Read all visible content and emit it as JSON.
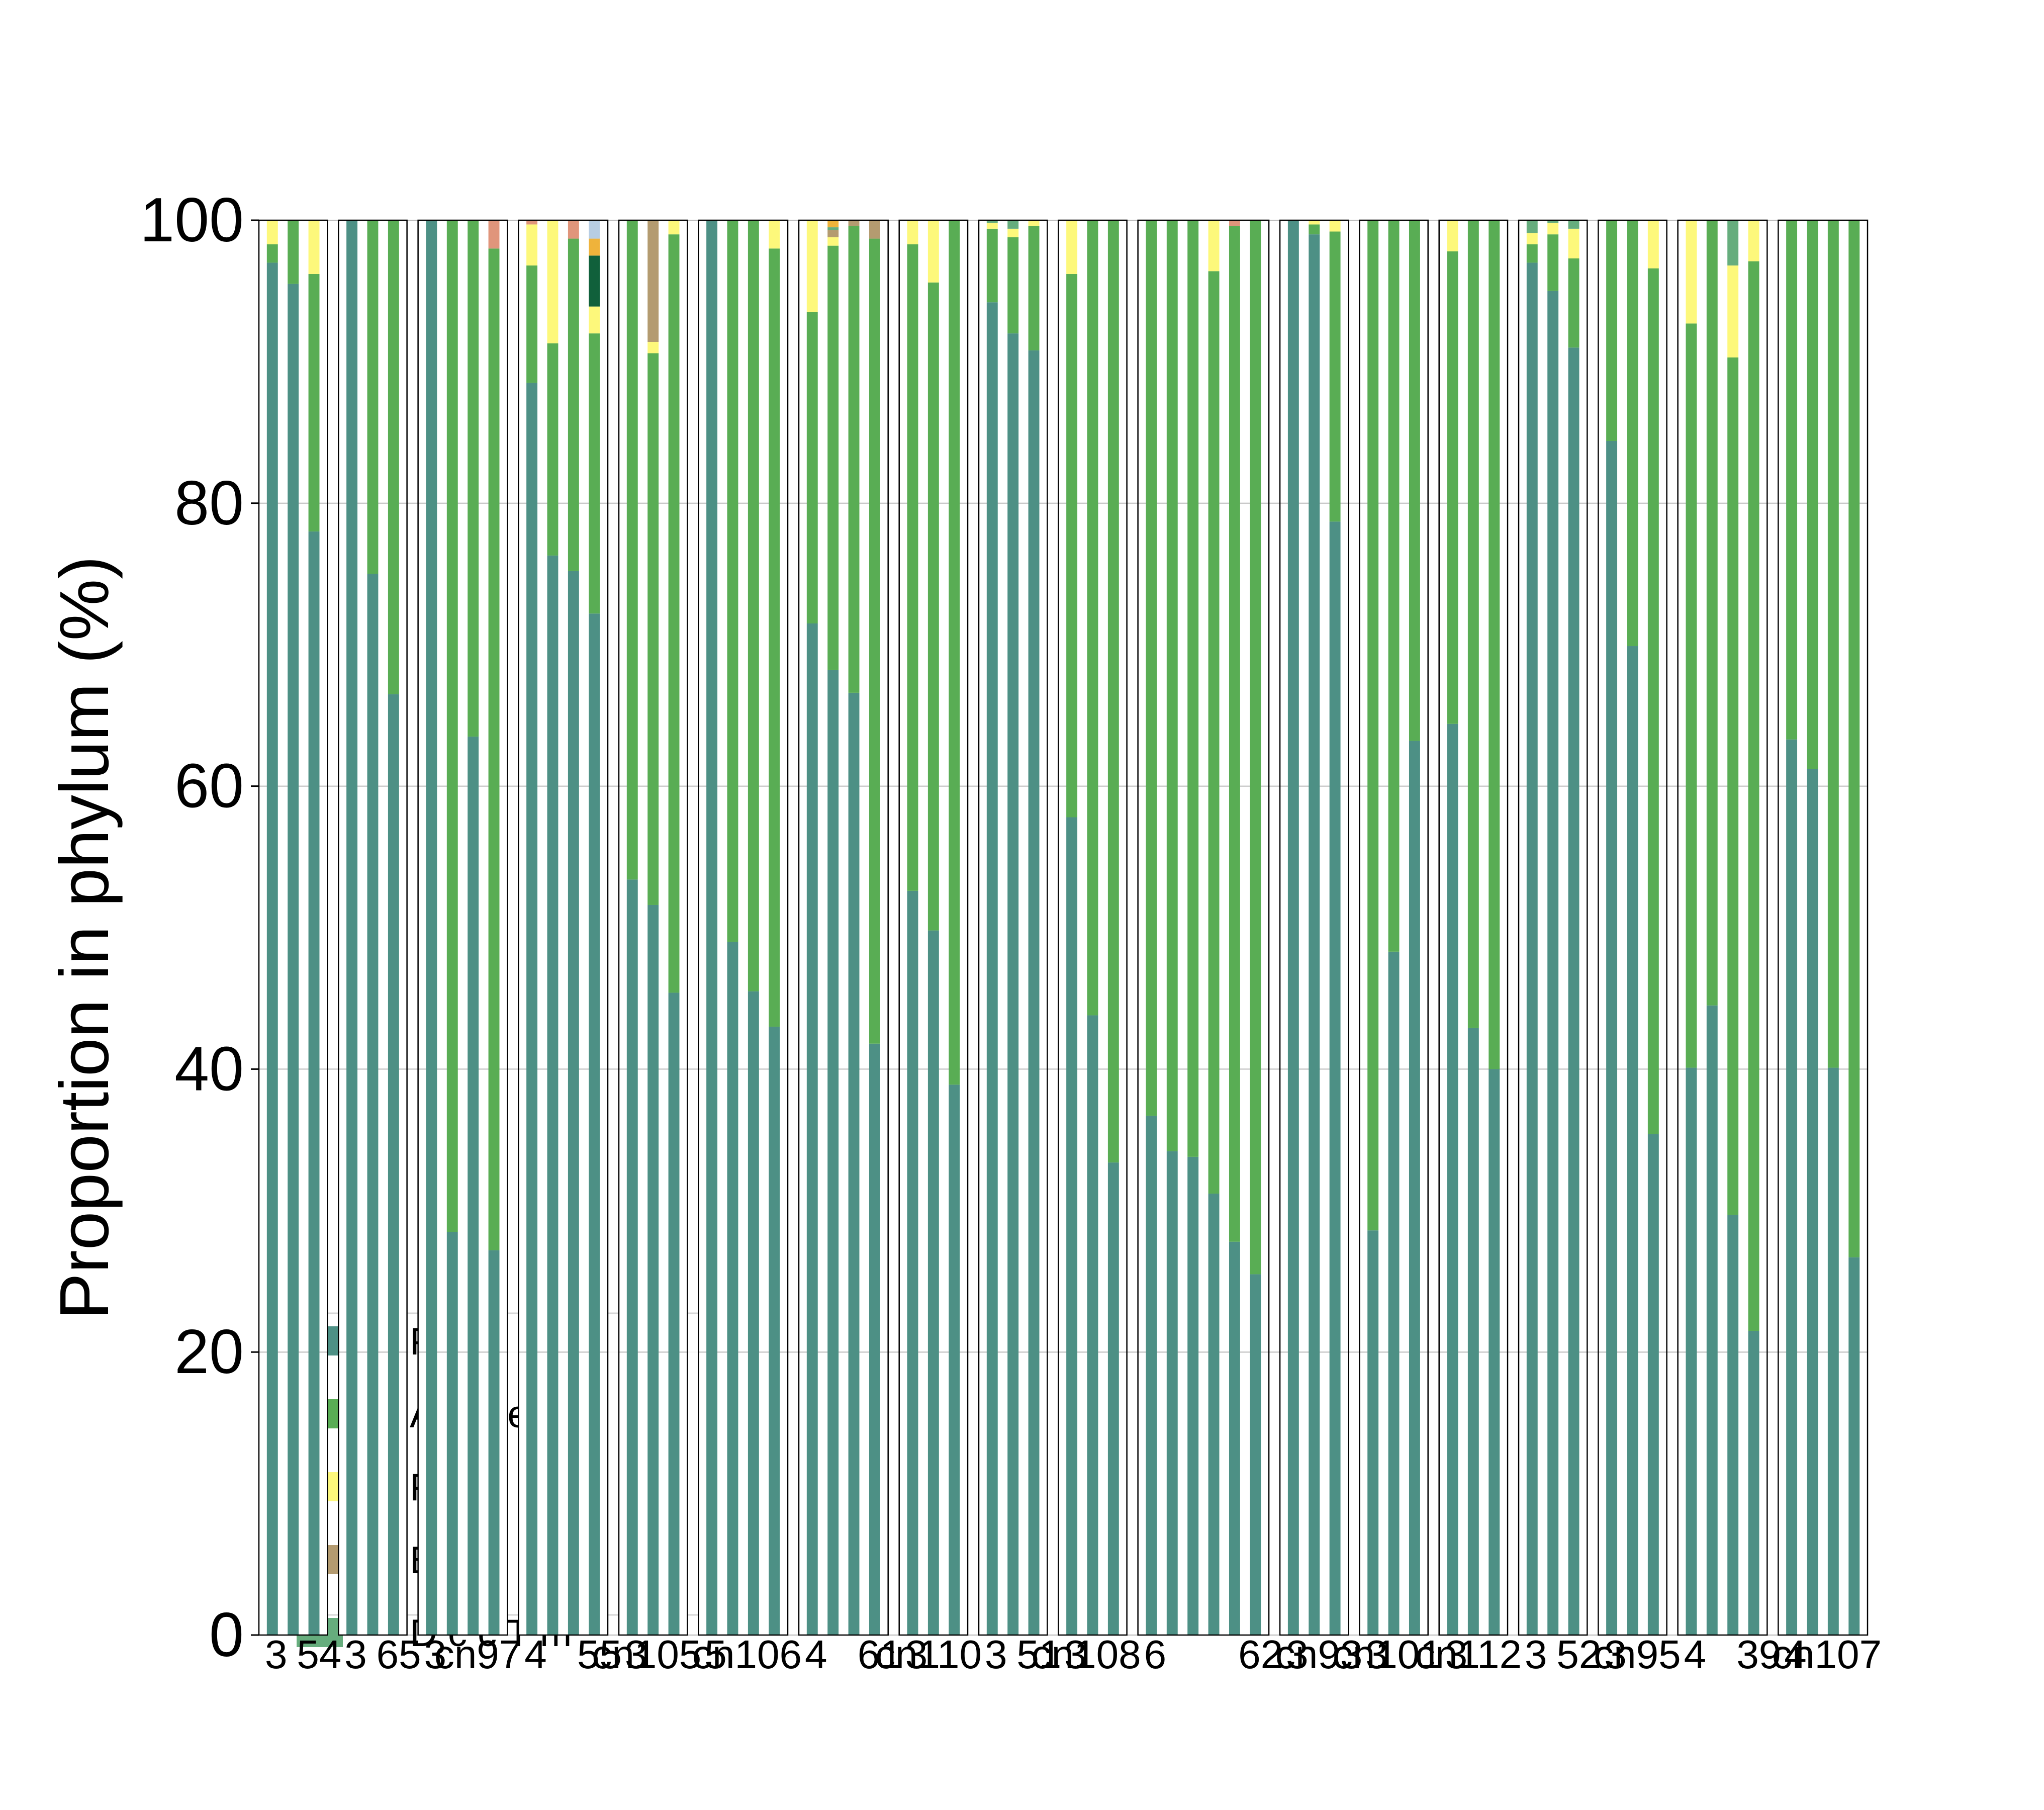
{
  "colors": {
    "Proteobacteria": "#4d9085",
    "Actinobacteria": "#59ad54",
    "Firmicutes": "#fdf87b",
    "Bacteroidetes": "#b49b70",
    "Deinococcus-Thermus": "#66ad7d",
    "Other_salmon": "#e0957b",
    "Other_dark_green": "#10603b",
    "Other_orange": "#efb33b",
    "Other_light_blue": "#b7cde3"
  },
  "chart_data": {
    "type": "bar",
    "subtype": "stacked-percent, faceted panels",
    "ylabel": "Proportion in phylum (%)",
    "ylim": [
      0,
      100
    ],
    "yticks": [
      0,
      20,
      40,
      60,
      80,
      100
    ],
    "grid": true,
    "legend_placement": "lower-left (partially hidden behind bars)",
    "legend_order": [
      "Proteobacteria",
      "Actinobacteria",
      "Firmicutes",
      "Bacteroidetes",
      "Deinococcus-Thermus"
    ],
    "legend_visible_text": [
      "P    e    ct",
      "A    n    ote",
      "F    i    s",
      "B    te    e",
      "D    c    c    T    m"
    ],
    "panels": [
      {
        "tick_labels": [
          "3",
          "54"
        ],
        "bars": [
          {
            "P": 97,
            "A": 1.3,
            "F": 1.7
          },
          {
            "P": 95.5,
            "A": 4.5
          },
          {
            "P": 78,
            "A": 18.2,
            "F": 3.8
          }
        ]
      },
      {
        "tick_labels": [
          "3",
          "65"
        ],
        "bars": [
          {
            "P": 100
          },
          {
            "P": 75,
            "A": 25
          },
          {
            "P": 66.5,
            "A": 33.5
          }
        ]
      },
      {
        "tick_labels": [
          "3",
          "cn97"
        ],
        "bars": [
          {
            "P": 100
          },
          {
            "P": 28.5,
            "A": 71.5
          },
          {
            "P": 63.5,
            "A": 36.5
          },
          {
            "A": 70.8,
            "P": 27.2,
            "S": 2
          }
        ]
      },
      {
        "tick_labels": [
          "4",
          "55"
        ],
        "bars": [
          {
            "P": 88.5,
            "A": 8.3,
            "F": 2.9,
            "S": 0.3
          },
          {
            "P": 76.3,
            "A": 15,
            "F": 8.7
          },
          {
            "P": 75.2,
            "A": 23.5,
            "S": 1.3
          },
          {
            "P": 72.2,
            "A": 19.8,
            "F": 1.9,
            "G": 3.6,
            "O": 1.2,
            "L": 1.3
          }
        ]
      },
      {
        "tick_labels": [
          "3",
          "cn105"
        ],
        "bars": [
          {
            "P": 53.4,
            "A": 46.6
          },
          {
            "P": 51.6,
            "A": 39,
            "B": 8.6,
            "F": 0.8
          },
          {
            "P": 45.4,
            "A": 53.6,
            "F": 1
          }
        ]
      },
      {
        "tick_labels": [
          "5",
          "cn106"
        ],
        "bars": [
          {
            "P": 100
          },
          {
            "A": 51,
            "P": 49
          },
          {
            "A": 54.5,
            "P": 45.5
          },
          {
            "A": 55,
            "P": 43,
            "F": 2
          }
        ]
      },
      {
        "tick_labels": [
          "4",
          "61"
        ],
        "bars": [
          {
            "P": 71.5,
            "A": 22,
            "F": 6.5
          },
          {
            "P": 68.2,
            "A": 30,
            "F": 0.6,
            "O": 0.5,
            "B": 0.5,
            "D": 0.2
          },
          {
            "P": 66.6,
            "A": 33,
            "B": 0.4
          },
          {
            "P": 41.8,
            "A": 56.9,
            "B": 1.3
          }
        ]
      },
      {
        "tick_labels": [
          "3",
          "cn110"
        ],
        "bars": [
          {
            "A": 45.7,
            "P": 52.6,
            "F": 1.7
          },
          {
            "A": 45.8,
            "P": 49.8,
            "F": 4.4
          },
          {
            "A": 61.1,
            "P": 38.9
          }
        ]
      },
      {
        "tick_labels": [
          "3",
          "51"
        ],
        "bars": [
          {
            "P": 94.2,
            "A": 5.2,
            "F": 0.4,
            "D": 0.2
          },
          {
            "P": 92,
            "A": 6.8,
            "F": 0.6,
            "D": 0.6
          },
          {
            "P": 90.8,
            "A": 8.8,
            "F": 0.4
          }
        ]
      },
      {
        "tick_labels": [
          "3",
          "cn108"
        ],
        "bars": [
          {
            "A": 38.4,
            "P": 57.8,
            "F": 3.8
          },
          {
            "A": 56.2,
            "P": 43.8
          },
          {
            "A": 66.6,
            "P": 33.4
          }
        ]
      },
      {
        "tick_labels": [
          "6",
          "62"
        ],
        "bars": [
          {
            "A": 63.3,
            "P": 36.7
          },
          {
            "A": 65.8,
            "P": 34.2
          },
          {
            "A": 66.2,
            "P": 33.8
          },
          {
            "A": 65.2,
            "P": 31.2,
            "F": 3.6
          },
          {
            "A": 71.8,
            "P": 27.8,
            "S": 0.4
          },
          {
            "A": 74.5,
            "P": 25.5
          }
        ]
      },
      {
        "tick_labels": [
          "3",
          "cn93"
        ],
        "bars": [
          {
            "P": 100
          },
          {
            "P": 99,
            "A": 0.7,
            "F": 0.3
          },
          {
            "P": 78.7,
            "A": 20.5,
            "F": 0.8
          }
        ]
      },
      {
        "tick_labels": [
          "3",
          "cn101"
        ],
        "bars": [
          {
            "A": 71.4,
            "P": 28.6
          },
          {
            "A": 51.7,
            "P": 48.3
          },
          {
            "A": 36.8,
            "P": 63.2
          }
        ]
      },
      {
        "tick_labels": [
          "3",
          "cn112"
        ],
        "bars": [
          {
            "A": 33.4,
            "P": 64.4,
            "F": 2.2
          },
          {
            "A": 57.1,
            "P": 42.9
          },
          {
            "A": 60,
            "P": 40
          }
        ]
      },
      {
        "tick_labels": [
          "3",
          "52"
        ],
        "bars": [
          {
            "P": 97,
            "A": 1.3,
            "F": 0.8,
            "D": 0.9
          },
          {
            "P": 95,
            "A": 4,
            "F": 0.8,
            "D": 0.2
          },
          {
            "P": 91,
            "A": 6.3,
            "F": 2.1,
            "D": 0.6
          }
        ]
      },
      {
        "tick_labels": [
          "3",
          "cn95"
        ],
        "bars": [
          {
            "P": 84.4,
            "A": 15.6
          },
          {
            "P": 69.9,
            "A": 30.1
          },
          {
            "P": 35.4,
            "A": 61.2,
            "F": 3.4
          }
        ]
      },
      {
        "tick_labels": [
          "4",
          "39"
        ],
        "bars": [
          {
            "A": 52.6,
            "P": 40.1,
            "F": 7.3
          },
          {
            "A": 55.5,
            "P": 44.5
          },
          {
            "A": 60.6,
            "P": 29.7,
            "F": 6.5,
            "D": 3.2
          },
          {
            "A": 75.6,
            "P": 21.5,
            "F": 2.9
          }
        ]
      },
      {
        "tick_labels": [
          "4",
          "cn107"
        ],
        "bars": [
          {
            "A": 36.7,
            "P": 63.3
          },
          {
            "A": 38.8,
            "P": 61.2
          },
          {
            "A": 59.9,
            "P": 40.1
          },
          {
            "A": 73.3,
            "P": 26.7
          }
        ]
      }
    ]
  }
}
